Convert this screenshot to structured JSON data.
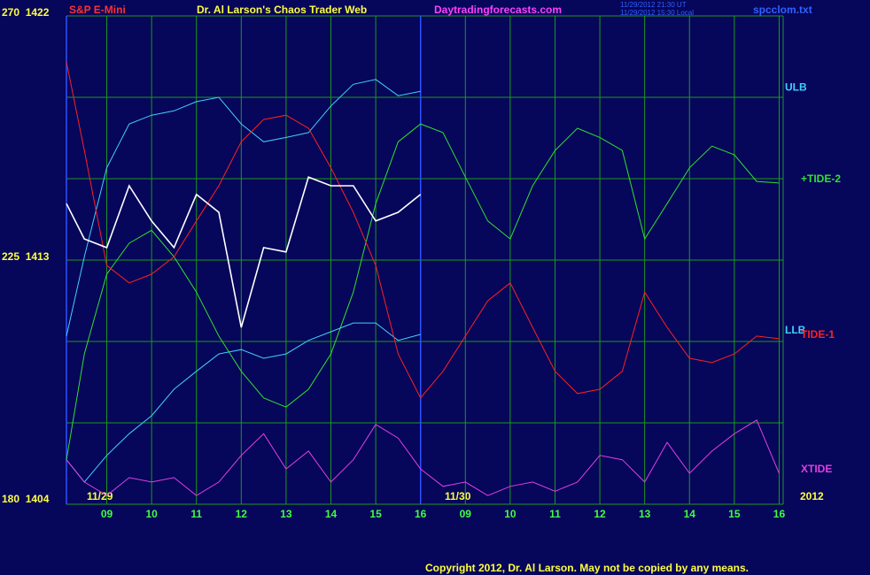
{
  "chart_data": {
    "type": "line",
    "header": {
      "symbol": "S&P E-Mini",
      "title": "Dr. Al Larson's Chaos Trader Web",
      "site": "Daytradingforecasts.com",
      "time_ut": "11/29/2012 21:30 UT",
      "time_local": "11/29/2012 15:30 Local",
      "file": "spcclom.txt"
    },
    "copyright": "Copyright 2012, Dr. Al Larson. May not be copied by any means.",
    "date_labels": [
      "11/29",
      "11/30",
      "2012"
    ],
    "x": [
      0.1,
      0.5,
      1,
      1.5,
      2,
      2.5,
      3,
      3.5,
      4,
      4.5,
      5,
      5.5,
      6,
      6.5,
      7,
      7.5,
      8,
      8.5,
      9,
      9.5,
      10,
      10.5,
      11,
      11.5,
      12,
      12.5,
      13,
      13.5,
      14,
      14.5,
      15,
      15.5,
      16
    ],
    "xlim": [
      0.1,
      16.09
    ],
    "xticks": [
      {
        "value": 1,
        "label": "09"
      },
      {
        "value": 2,
        "label": "10"
      },
      {
        "value": 3,
        "label": "11"
      },
      {
        "value": 4,
        "label": "12"
      },
      {
        "value": 5,
        "label": "13"
      },
      {
        "value": 6,
        "label": "14"
      },
      {
        "value": 7,
        "label": "15"
      },
      {
        "value": 8,
        "label": "16"
      },
      {
        "value": 9,
        "label": "09"
      },
      {
        "value": 10,
        "label": "10"
      },
      {
        "value": 11,
        "label": "11"
      },
      {
        "value": 12,
        "label": "12"
      },
      {
        "value": 13,
        "label": "13"
      },
      {
        "value": 14,
        "label": "14"
      },
      {
        "value": 15,
        "label": "15"
      },
      {
        "value": 16,
        "label": "16"
      }
    ],
    "day_separator": 8,
    "ylim": [
      180,
      270
    ],
    "yticks": [
      {
        "value": 180,
        "label": "180  1404"
      },
      {
        "value": 225,
        "label": "225  1413"
      },
      {
        "value": 270,
        "label": "270  1422"
      }
    ],
    "minor_yticks": [
      195,
      210,
      240,
      255
    ],
    "grid": true,
    "series": [
      {
        "name": "ULB",
        "color": "#40d0ff",
        "values": [
          211.0,
          225.6,
          242.0,
          250.1,
          251.7,
          252.5,
          254.2,
          255.0,
          250.1,
          246.8,
          247.6,
          248.5,
          253.4,
          257.4,
          258.3,
          255.3,
          256.1,
          null,
          null,
          null,
          null,
          null,
          null,
          null,
          null,
          null,
          null,
          null,
          null,
          null,
          null,
          null,
          null
        ]
      },
      {
        "name": "+TIDE-2",
        "color": "#30e030",
        "values": [
          188.2,
          207.7,
          222.4,
          228.1,
          230.5,
          225.6,
          219.1,
          211.0,
          204.5,
          199.6,
          197.9,
          201.2,
          207.7,
          219.1,
          235.4,
          246.8,
          250.1,
          248.5,
          240.3,
          232.2,
          228.9,
          238.7,
          245.2,
          249.3,
          247.6,
          245.2,
          228.9,
          235.4,
          242.0,
          246.0,
          244.4,
          239.5,
          239.2
        ]
      },
      {
        "name": "LLB",
        "color": "#40d0ff",
        "values": [
          188.2,
          184.1,
          189.0,
          193.0,
          196.3,
          201.2,
          204.5,
          207.7,
          208.5,
          206.9,
          207.7,
          210.2,
          211.8,
          213.4,
          213.4,
          210.2,
          211.3,
          null,
          null,
          null,
          null,
          null,
          null,
          null,
          null,
          null,
          null,
          null,
          null,
          null,
          null,
          null,
          null
        ]
      },
      {
        "name": "TIDE-1",
        "color": "#ff2020",
        "values": [
          261.5,
          245.2,
          224.0,
          220.8,
          222.4,
          225.6,
          232.2,
          238.7,
          246.8,
          250.9,
          251.7,
          249.3,
          242.0,
          233.8,
          224.0,
          207.7,
          199.6,
          204.5,
          211.0,
          217.5,
          220.8,
          212.6,
          204.5,
          200.4,
          201.2,
          204.5,
          219.1,
          212.6,
          206.9,
          206.1,
          207.7,
          211.0,
          210.5
        ]
      },
      {
        "name": "XTIDE",
        "color": "#e040e0",
        "values": [
          188.2,
          184.1,
          181.6,
          184.9,
          184.1,
          184.9,
          181.6,
          184.1,
          189.0,
          193.0,
          186.5,
          189.8,
          184.1,
          188.2,
          194.7,
          192.2,
          186.5,
          183.3,
          184.1,
          181.6,
          183.3,
          184.1,
          182.4,
          184.1,
          189.0,
          188.2,
          184.1,
          191.4,
          185.7,
          189.8,
          193.0,
          195.5,
          185.7
        ]
      },
      {
        "color": "#ffffff",
        "values": [
          235.4,
          228.9,
          227.3,
          238.7,
          232.2,
          227.3,
          237.1,
          233.8,
          212.6,
          227.3,
          226.5,
          240.3,
          238.7,
          238.7,
          232.2,
          233.8,
          237.1,
          null,
          null,
          null,
          null,
          null,
          null,
          null,
          null,
          null,
          null,
          null,
          null,
          null,
          null,
          null,
          null
        ]
      }
    ]
  }
}
